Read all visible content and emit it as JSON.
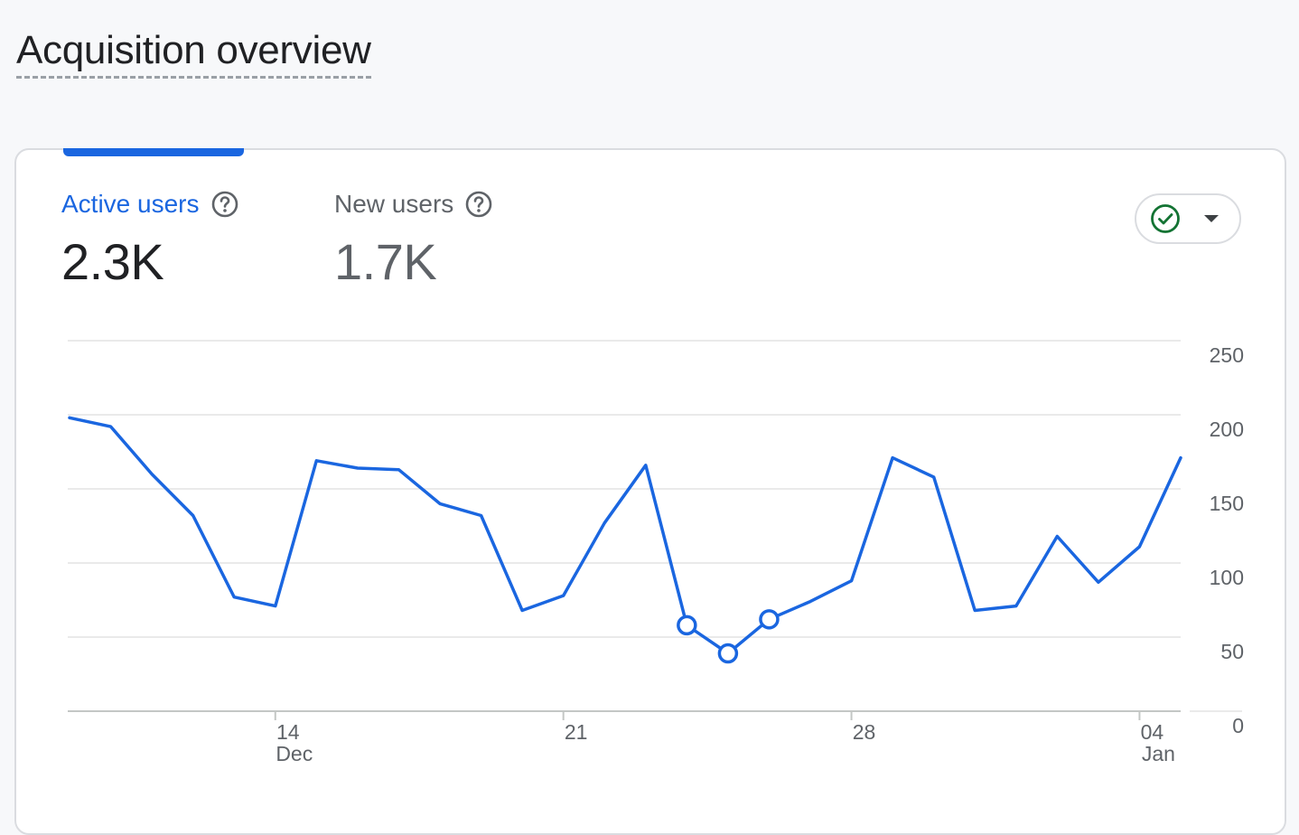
{
  "page": {
    "title": "Acquisition overview"
  },
  "metrics": [
    {
      "label": "Active users",
      "value": "2.3K"
    },
    {
      "label": "New users",
      "value": "1.7K"
    }
  ],
  "icons": {
    "help": "help-circle-icon",
    "status": "check-circle-icon",
    "dropdown": "caret-down-icon"
  },
  "colors": {
    "accent": "#1a66e0",
    "status_ok": "#137333"
  },
  "chart_data": {
    "type": "line",
    "title": "",
    "xlabel": "",
    "ylabel": "",
    "ylim": [
      0,
      250
    ],
    "y_ticks": [
      "250",
      "200",
      "150",
      "100",
      "50",
      "0"
    ],
    "y_tick_values": [
      250,
      200,
      150,
      100,
      50,
      0
    ],
    "x_ticks": [
      {
        "day": "14",
        "month": "Dec",
        "index": 5
      },
      {
        "day": "21",
        "month": "",
        "index": 12
      },
      {
        "day": "28",
        "month": "",
        "index": 19
      },
      {
        "day": "04",
        "month": "Jan",
        "index": 26
      }
    ],
    "grid": true,
    "series": [
      {
        "color": "#1a66e0",
        "values": [
          198,
          192,
          160,
          132,
          77,
          71,
          169,
          164,
          163,
          140,
          132,
          68,
          78,
          127,
          166,
          58,
          39,
          62,
          74,
          88,
          171,
          158,
          68,
          71,
          118,
          87,
          111,
          171
        ],
        "highlighted_points": [
          15,
          16,
          17
        ]
      }
    ]
  }
}
